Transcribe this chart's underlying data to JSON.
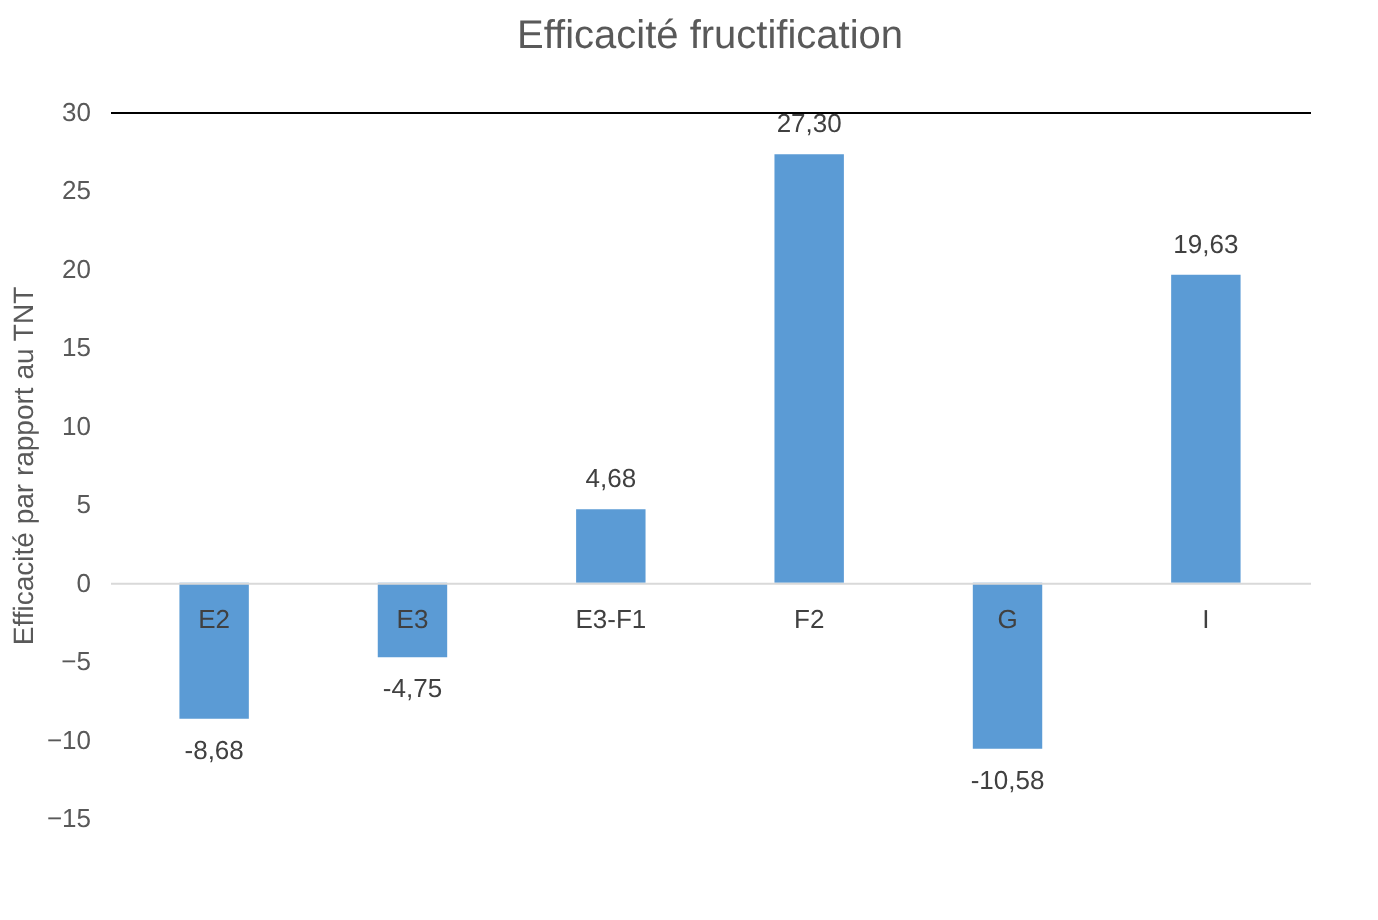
{
  "chart_data": {
    "type": "bar",
    "title": "Efficacité fructification",
    "ylabel": "Efficacité par rapport au TNT",
    "categories": [
      "E2",
      "E3",
      "E3-F1",
      "F2",
      "G",
      "I"
    ],
    "values": [
      -8.68,
      -4.75,
      4.68,
      27.3,
      -10.58,
      19.63
    ],
    "value_labels": [
      "-8,68",
      "-4,75",
      "4,68",
      "27,30",
      "-10,58",
      "19,63"
    ],
    "color": "#5b9bd5",
    "ylim": [
      -15,
      30
    ],
    "yticks": [
      -15,
      -10,
      -5,
      0,
      5,
      10,
      15,
      20,
      25,
      30
    ],
    "grid": false
  }
}
